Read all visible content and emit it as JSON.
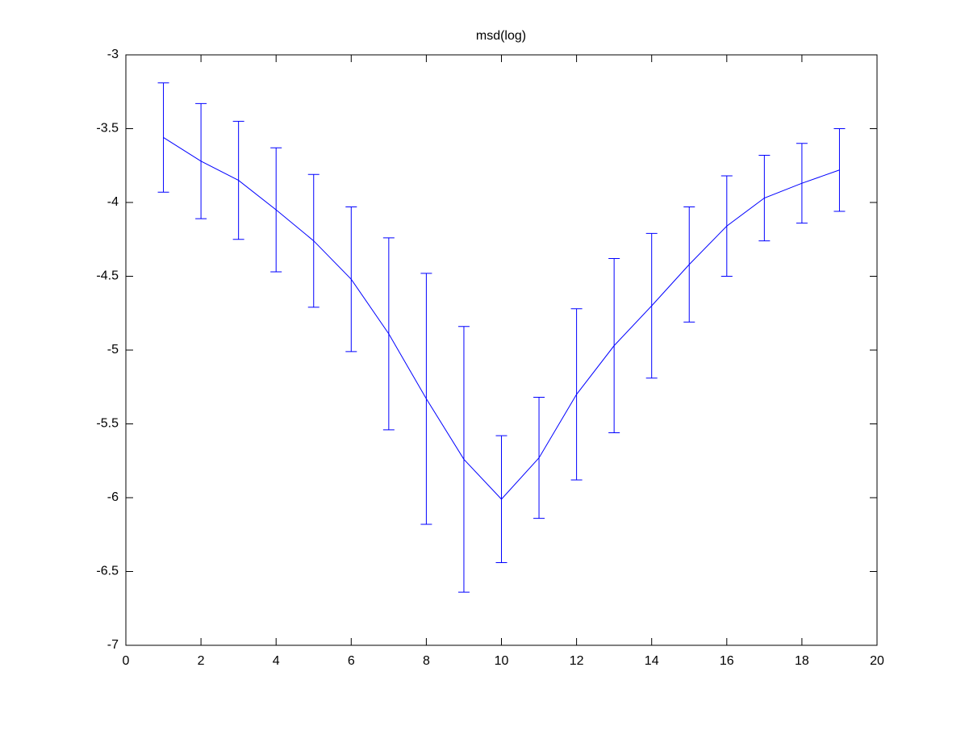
{
  "chart_data": {
    "type": "errorbar",
    "title": "msd(log)",
    "x": [
      1,
      2,
      3,
      4,
      5,
      6,
      7,
      8,
      9,
      10,
      11,
      12,
      13,
      14,
      15,
      16,
      17,
      18,
      19
    ],
    "series": [
      {
        "color": "#0000ff",
        "values": [
          -3.56,
          -3.72,
          -3.85,
          -4.05,
          -4.26,
          -4.52,
          -4.89,
          -5.33,
          -5.74,
          -6.01,
          -5.73,
          -5.3,
          -4.97,
          -4.7,
          -4.42,
          -4.16,
          -3.97,
          -3.87,
          -3.78
        ],
        "errors": [
          0.37,
          0.39,
          0.4,
          0.42,
          0.45,
          0.49,
          0.65,
          0.85,
          0.9,
          0.43,
          0.41,
          0.58,
          0.59,
          0.49,
          0.39,
          0.34,
          0.29,
          0.27,
          0.28
        ]
      }
    ],
    "xlim": [
      0,
      20
    ],
    "xticks": [
      0,
      2,
      4,
      6,
      8,
      10,
      12,
      14,
      16,
      18,
      20
    ],
    "ylim": [
      -7,
      -3
    ],
    "yticks": [
      -7,
      -6.5,
      -6,
      -5.5,
      -5,
      -4.5,
      -4,
      -3.5,
      -3
    ],
    "grid": false
  }
}
